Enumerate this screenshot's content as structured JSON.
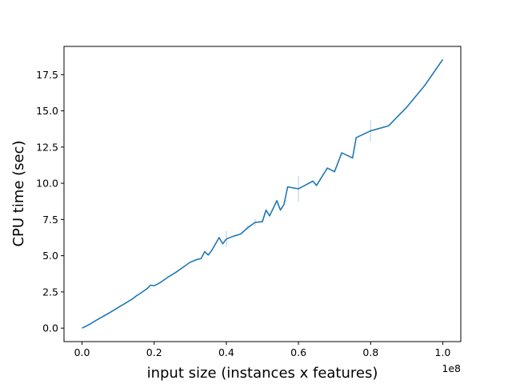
{
  "chart_data": {
    "type": "line",
    "title": "",
    "xlabel": "input size (instances x features)",
    "ylabel": "CPU time (sec)",
    "x_offset_label": "1e8",
    "x_scale": 100000000,
    "xlim": [
      -5000000,
      105000000
    ],
    "ylim": [
      -0.93,
      19.45
    ],
    "grid": false,
    "legend": "none",
    "color": "#1f77b4",
    "band_color": "#aec7e8",
    "xticks": [
      0,
      20000000,
      40000000,
      60000000,
      80000000,
      100000000
    ],
    "xtick_labels": [
      "0.0",
      "0.2",
      "0.4",
      "0.6",
      "0.8",
      "1.0"
    ],
    "yticks": [
      0,
      2.5,
      5,
      7.5,
      10,
      12.5,
      15,
      17.5
    ],
    "ytick_labels": [
      "0.0",
      "2.5",
      "5.0",
      "7.5",
      "10.0",
      "12.5",
      "15.0",
      "17.5"
    ],
    "series": [
      {
        "name": "",
        "x": [
          0,
          2000000,
          4000000,
          6000000,
          8000000,
          10000000,
          12000000,
          14000000,
          15000000,
          16000000,
          17000000,
          18000000,
          19000000,
          20000000,
          21000000,
          22000000,
          24000000,
          26000000,
          28000000,
          30000000,
          32000000,
          33000000,
          34000000,
          35000000,
          36000000,
          38000000,
          39000000,
          40000000,
          42000000,
          44000000,
          46000000,
          48000000,
          50000000,
          51000000,
          52000000,
          54000000,
          55000000,
          56000000,
          57000000,
          60000000,
          64000000,
          65000000,
          68000000,
          70000000,
          72000000,
          75000000,
          76000000,
          80000000,
          85000000,
          90000000,
          95000000,
          100000000
        ],
        "y": [
          0.0,
          0.25,
          0.55,
          0.83,
          1.12,
          1.42,
          1.72,
          2.02,
          2.22,
          2.37,
          2.55,
          2.72,
          2.97,
          2.93,
          3.05,
          3.2,
          3.55,
          3.85,
          4.2,
          4.55,
          4.75,
          4.8,
          5.28,
          5.05,
          5.38,
          6.25,
          5.82,
          6.15,
          6.35,
          6.5,
          6.95,
          7.3,
          7.35,
          8.15,
          7.75,
          8.8,
          8.15,
          8.55,
          9.75,
          9.62,
          10.15,
          9.85,
          11.05,
          10.8,
          12.1,
          11.75,
          13.15,
          13.62,
          13.97,
          15.25,
          16.75,
          18.55
        ],
        "error": [
          0,
          0,
          0,
          0,
          0,
          0,
          0,
          0,
          0,
          0,
          0,
          0,
          0,
          0,
          0,
          0,
          0,
          0,
          0,
          0,
          0,
          0,
          0,
          0,
          0,
          0,
          0,
          0.55,
          0,
          0,
          0.15,
          0.25,
          0,
          0,
          0,
          0,
          0,
          0,
          0,
          0.9,
          0,
          0,
          0,
          0,
          0,
          0,
          0,
          0.75,
          0,
          0,
          0,
          0
        ]
      }
    ]
  }
}
